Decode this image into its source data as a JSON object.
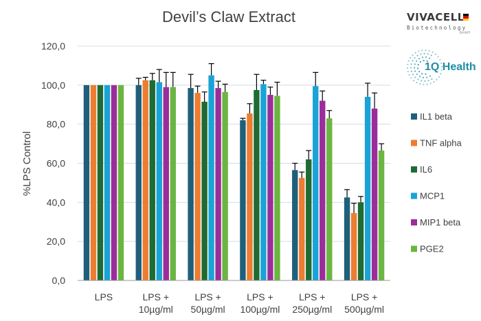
{
  "chart_data": {
    "type": "bar",
    "title": "Devil’s Claw Extract",
    "ylabel": "%LPS Control",
    "xlabel": "",
    "ylim": [
      0,
      120
    ],
    "yticks": [
      "0,0",
      "20,0",
      "40,0",
      "60,0",
      "80,0",
      "100,0",
      "120,0"
    ],
    "categories": [
      [
        "LPS"
      ],
      [
        "LPS +",
        "10µg/ml"
      ],
      [
        "LPS +",
        "50µg/ml"
      ],
      [
        "LPS +",
        "100µg/ml"
      ],
      [
        "LPS +",
        "250µg/ml"
      ],
      [
        "LPS +",
        "500µg/ml"
      ]
    ],
    "grid": true,
    "legend_position": "right",
    "series": [
      {
        "name": "IL1 beta",
        "color": "#1f5f7a",
        "values": [
          100,
          100,
          98.5,
          82,
          56.5,
          42.5
        ],
        "errors": [
          0,
          3.5,
          7,
          1,
          3.5,
          4
        ]
      },
      {
        "name": "TNF alpha",
        "color": "#ed7d31",
        "values": [
          100,
          102.5,
          96,
          85.5,
          52.5,
          34.5
        ],
        "errors": [
          0,
          1.5,
          3.5,
          5,
          3,
          5
        ]
      },
      {
        "name": "IL6",
        "color": "#1e6b34",
        "values": [
          100,
          102.5,
          91.5,
          97.5,
          62,
          40
        ],
        "errors": [
          0,
          3.5,
          5,
          8,
          4.5,
          3
        ]
      },
      {
        "name": "MCP1",
        "color": "#1aa3d6",
        "values": [
          100,
          101.5,
          105,
          100.5,
          99.5,
          94
        ],
        "errors": [
          0,
          6.5,
          6,
          2,
          7,
          7
        ]
      },
      {
        "name": "MIP1 beta",
        "color": "#9b2d9b",
        "values": [
          100,
          99,
          98.5,
          95,
          92,
          88
        ],
        "errors": [
          0,
          7.5,
          3.5,
          4,
          5,
          8
        ]
      },
      {
        "name": "PGE2",
        "color": "#6bb542",
        "values": [
          100,
          99,
          96.5,
          94.5,
          83,
          66.5
        ],
        "errors": [
          0,
          7.5,
          4,
          7,
          4,
          3.5
        ]
      }
    ]
  },
  "logos": {
    "vivacell_main": "VIVACELL",
    "vivacell_sub": "Biotechnology",
    "vivacell_tiny": "GmbH",
    "iq_health": "1Q Health"
  },
  "colors": {
    "grid": "#d0dde8",
    "axis": "#9a9a9a",
    "text": "#404040",
    "iq_teal": "#1e8da5"
  }
}
